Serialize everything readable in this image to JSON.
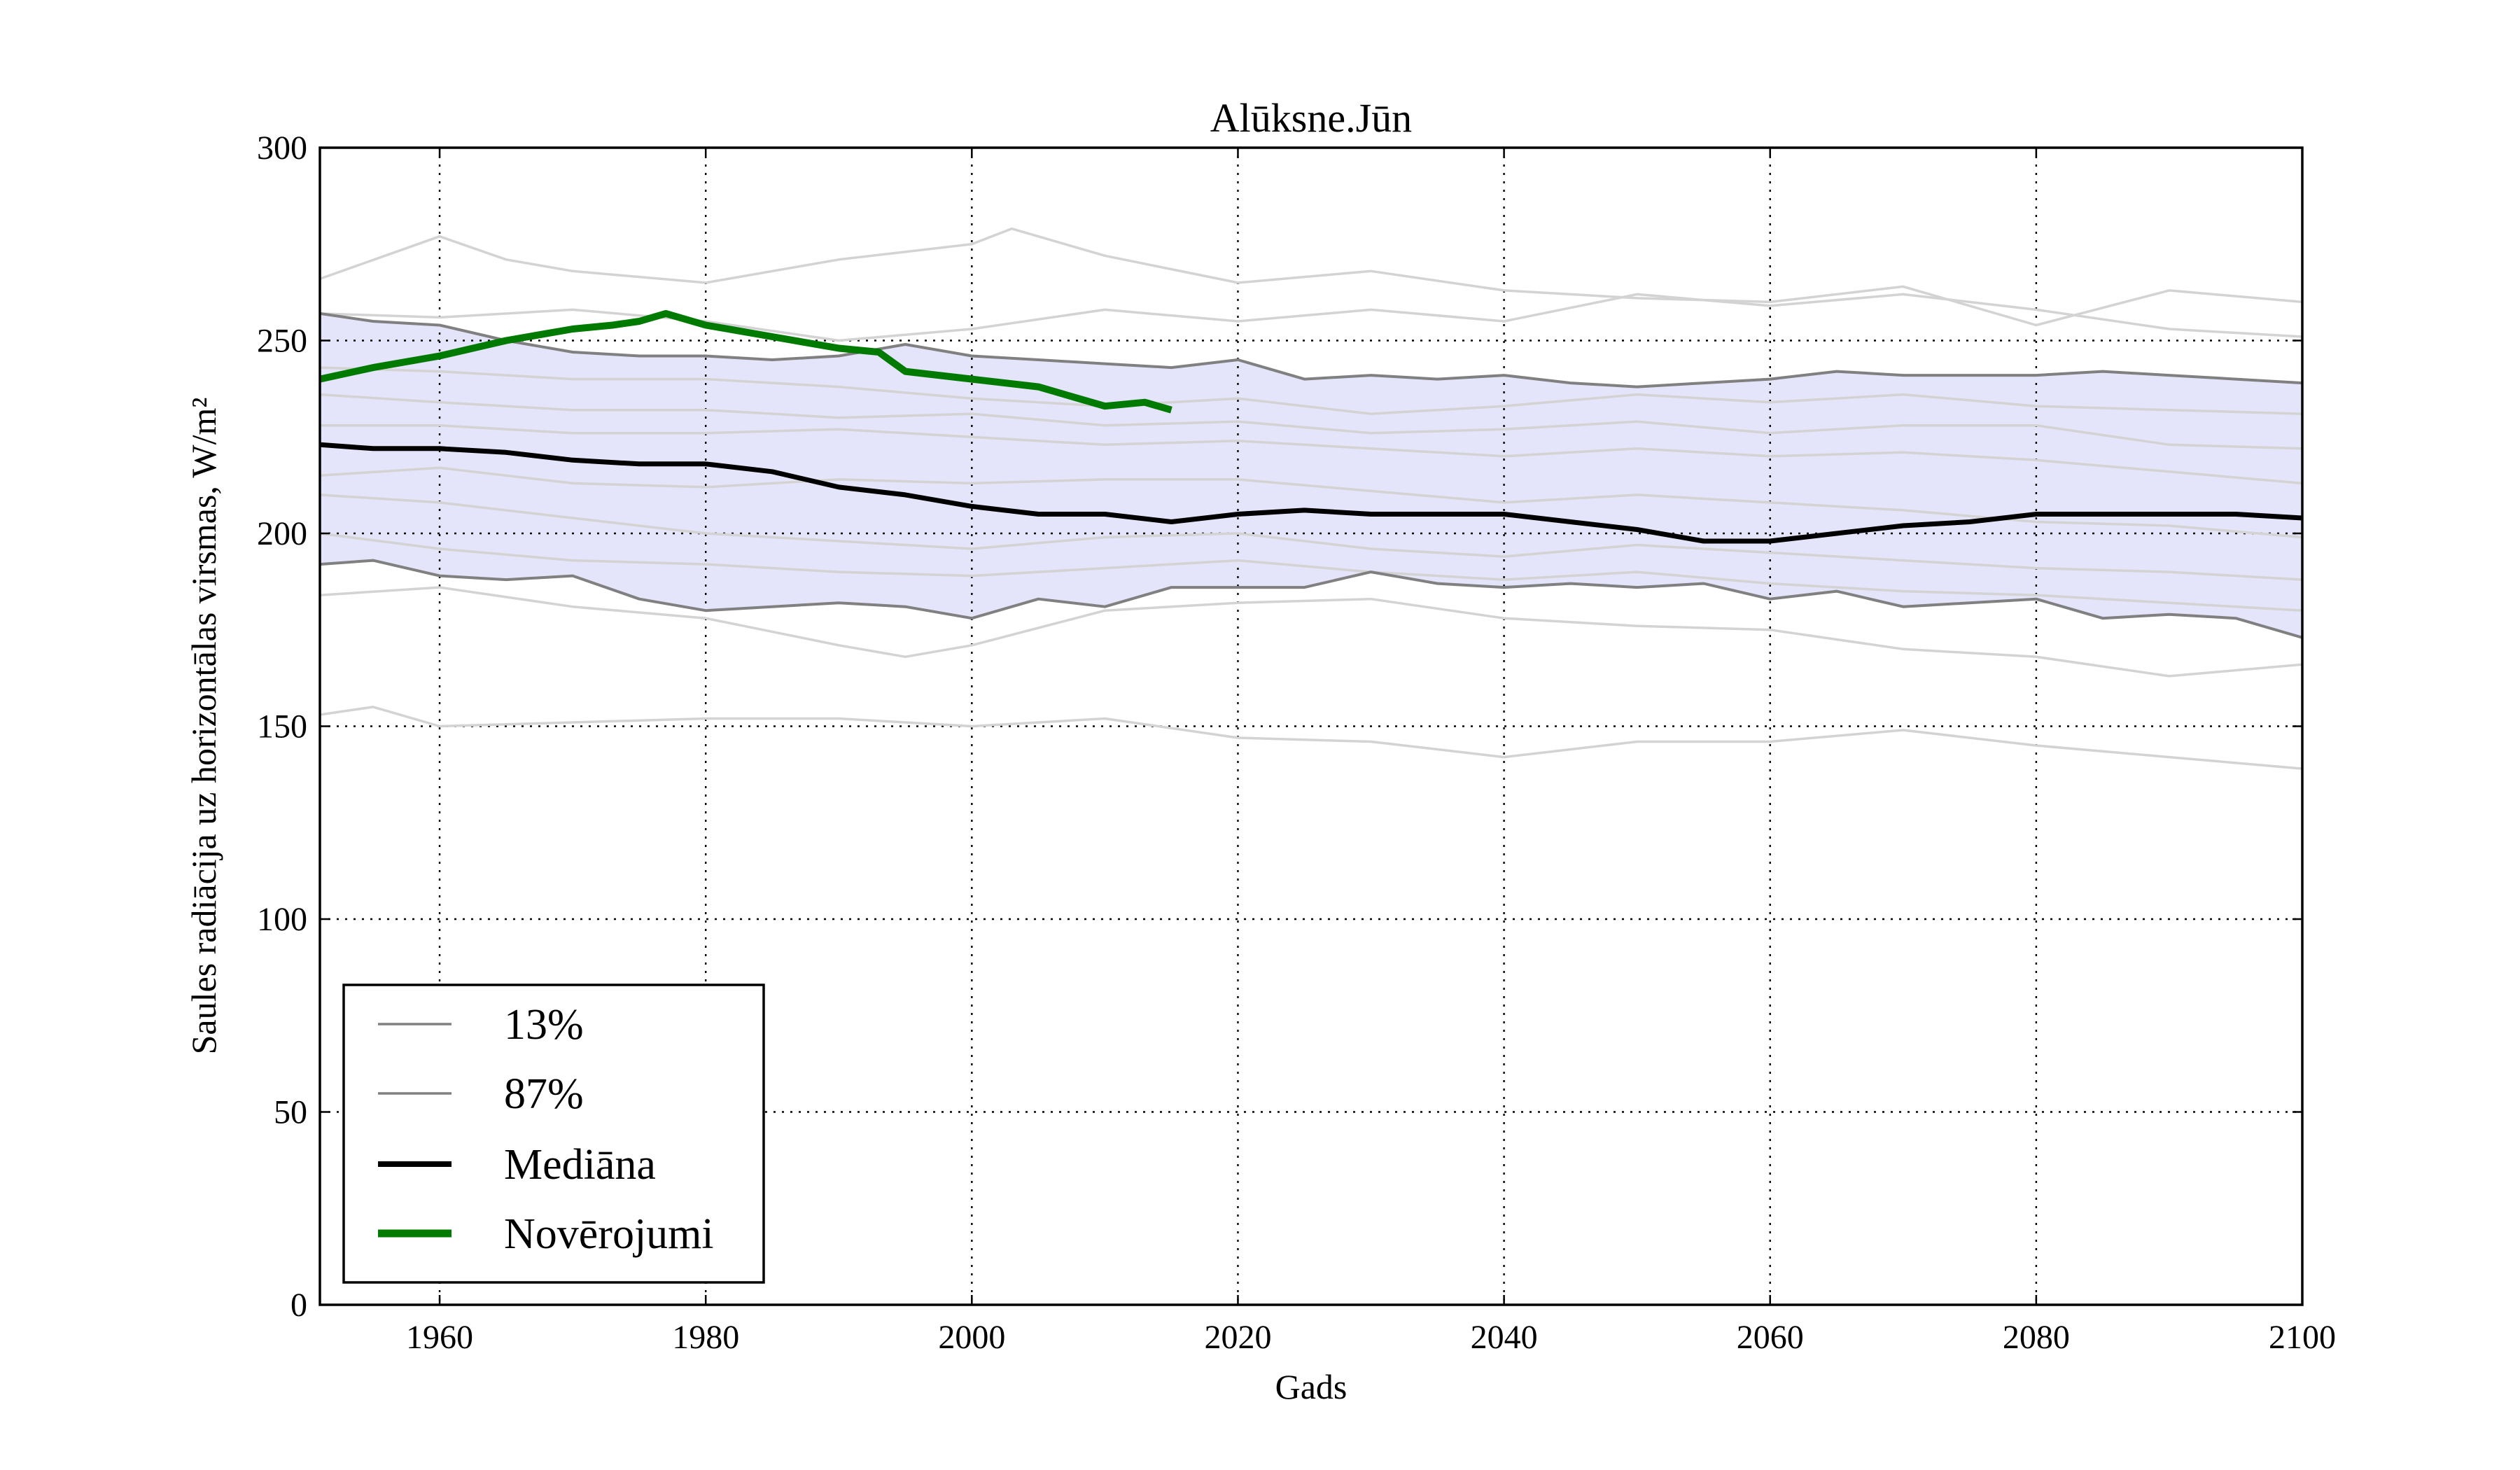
{
  "chart_data": {
    "type": "line",
    "title": "Alūksne.Jūn",
    "xlabel": "Gads",
    "ylabel": "Saules radiācija uz horizontālas virsmas, W/m²",
    "xlim": [
      1951,
      2100
    ],
    "ylim": [
      0,
      300
    ],
    "xticks": [
      1960,
      1980,
      2000,
      2020,
      2040,
      2060,
      2080,
      2100
    ],
    "yticks": [
      0,
      50,
      100,
      150,
      200,
      250,
      300
    ],
    "grid": true,
    "legend_position": "lower-left",
    "legend": [
      "13%",
      "87%",
      "Mediāna",
      "Novērojumi"
    ],
    "colors": {
      "band_fill": "#e4e4fb",
      "percentile_lines": "#808080",
      "ensemble_members": "#d3d3d3",
      "median": "#000000",
      "observations": "#007a00"
    },
    "band": {
      "lower_name": "13%",
      "upper_name": "87%",
      "x": [
        1951,
        1955,
        1960,
        1965,
        1970,
        1975,
        1980,
        1985,
        1990,
        1995,
        2000,
        2005,
        2010,
        2015,
        2020,
        2025,
        2030,
        2035,
        2040,
        2045,
        2050,
        2055,
        2060,
        2065,
        2070,
        2075,
        2080,
        2085,
        2090,
        2095,
        2100
      ],
      "lower": [
        192,
        193,
        189,
        188,
        189,
        183,
        180,
        181,
        182,
        181,
        178,
        183,
        181,
        186,
        186,
        186,
        190,
        187,
        186,
        187,
        186,
        187,
        183,
        185,
        181,
        182,
        183,
        178,
        179,
        178,
        173
      ],
      "upper": [
        257,
        255,
        254,
        250,
        247,
        246,
        246,
        245,
        246,
        249,
        246,
        245,
        244,
        243,
        245,
        240,
        241,
        240,
        241,
        239,
        238,
        239,
        240,
        242,
        241,
        241,
        241,
        242,
        241,
        240,
        239
      ]
    },
    "median": {
      "name": "Mediāna",
      "x": [
        1951,
        1955,
        1960,
        1965,
        1970,
        1975,
        1980,
        1985,
        1990,
        1995,
        2000,
        2005,
        2010,
        2015,
        2020,
        2025,
        2030,
        2035,
        2040,
        2045,
        2050,
        2055,
        2060,
        2065,
        2070,
        2075,
        2080,
        2085,
        2090,
        2095,
        2100
      ],
      "y": [
        223,
        222,
        222,
        221,
        219,
        218,
        218,
        216,
        212,
        210,
        207,
        205,
        205,
        203,
        205,
        206,
        205,
        205,
        205,
        203,
        201,
        198,
        198,
        200,
        202,
        203,
        205,
        205,
        205,
        205,
        204
      ]
    },
    "observations": {
      "name": "Novērojumi",
      "x": [
        1951,
        1955,
        1960,
        1965,
        1970,
        1973,
        1975,
        1977,
        1980,
        1985,
        1990,
        1993,
        1995,
        2000,
        2005,
        2008,
        2010,
        2013,
        2015
      ],
      "y": [
        240,
        243,
        246,
        250,
        253,
        254,
        255,
        257,
        254,
        251,
        248,
        247,
        242,
        240,
        238,
        235,
        233,
        234,
        232
      ]
    },
    "ensemble_members": [
      {
        "x": [
          1951,
          1960,
          1965,
          1970,
          1980,
          1990,
          2000,
          2003,
          2010,
          2020,
          2030,
          2040,
          2050,
          2060,
          2070,
          2080,
          2090,
          2100
        ],
        "y": [
          266,
          277,
          271,
          268,
          265,
          271,
          275,
          279,
          272,
          265,
          268,
          263,
          261,
          260,
          264,
          254,
          263,
          260
        ]
      },
      {
        "x": [
          1951,
          1960,
          1970,
          1980,
          1990,
          2000,
          2010,
          2020,
          2030,
          2040,
          2050,
          2060,
          2070,
          2080,
          2090,
          2100
        ],
        "y": [
          257,
          256,
          258,
          255,
          250,
          253,
          258,
          255,
          258,
          255,
          262,
          259,
          262,
          258,
          253,
          251
        ]
      },
      {
        "x": [
          1951,
          1960,
          1970,
          1980,
          1990,
          2000,
          2010,
          2020,
          2030,
          2040,
          2050,
          2060,
          2070,
          2080,
          2090,
          2100
        ],
        "y": [
          243,
          242,
          240,
          240,
          238,
          235,
          233,
          235,
          231,
          233,
          236,
          234,
          236,
          233,
          232,
          231
        ]
      },
      {
        "x": [
          1951,
          1960,
          1970,
          1980,
          1990,
          2000,
          2010,
          2020,
          2030,
          2040,
          2050,
          2060,
          2070,
          2080,
          2090,
          2100
        ],
        "y": [
          236,
          234,
          232,
          232,
          230,
          231,
          228,
          229,
          226,
          227,
          229,
          226,
          228,
          228,
          223,
          222
        ]
      },
      {
        "x": [
          1951,
          1960,
          1970,
          1980,
          1990,
          2000,
          2010,
          2020,
          2030,
          2040,
          2050,
          2060,
          2070,
          2080,
          2090,
          2100
        ],
        "y": [
          228,
          228,
          226,
          226,
          227,
          225,
          223,
          224,
          222,
          220,
          222,
          220,
          221,
          219,
          216,
          213
        ]
      },
      {
        "x": [
          1951,
          1960,
          1970,
          1980,
          1990,
          2000,
          2010,
          2020,
          2030,
          2040,
          2050,
          2060,
          2070,
          2080,
          2090,
          2100
        ],
        "y": [
          215,
          217,
          213,
          212,
          214,
          213,
          214,
          214,
          211,
          208,
          210,
          208,
          206,
          203,
          202,
          199
        ]
      },
      {
        "x": [
          1951,
          1960,
          1970,
          1980,
          1990,
          2000,
          2010,
          2020,
          2030,
          2040,
          2050,
          2060,
          2070,
          2080,
          2090,
          2100
        ],
        "y": [
          210,
          208,
          204,
          200,
          198,
          196,
          199,
          200,
          196,
          194,
          197,
          195,
          193,
          191,
          190,
          188
        ]
      },
      {
        "x": [
          1951,
          1960,
          1970,
          1980,
          1990,
          2000,
          2010,
          2020,
          2030,
          2040,
          2050,
          2060,
          2070,
          2080,
          2090,
          2100
        ],
        "y": [
          200,
          196,
          193,
          192,
          190,
          189,
          191,
          193,
          190,
          188,
          190,
          187,
          185,
          184,
          182,
          180
        ]
      },
      {
        "x": [
          1951,
          1960,
          1970,
          1980,
          1990,
          1995,
          2000,
          2010,
          2020,
          2030,
          2040,
          2050,
          2060,
          2070,
          2080,
          2090,
          2100
        ],
        "y": [
          184,
          186,
          181,
          178,
          171,
          168,
          171,
          180,
          182,
          183,
          178,
          176,
          175,
          170,
          168,
          163,
          166
        ]
      },
      {
        "x": [
          1951,
          1955,
          1960,
          1970,
          1980,
          1990,
          2000,
          2010,
          2020,
          2030,
          2040,
          2050,
          2060,
          2070,
          2080,
          2090,
          2100
        ],
        "y": [
          153,
          155,
          150,
          151,
          152,
          152,
          150,
          152,
          147,
          146,
          142,
          146,
          146,
          149,
          145,
          142,
          139
        ]
      }
    ]
  }
}
